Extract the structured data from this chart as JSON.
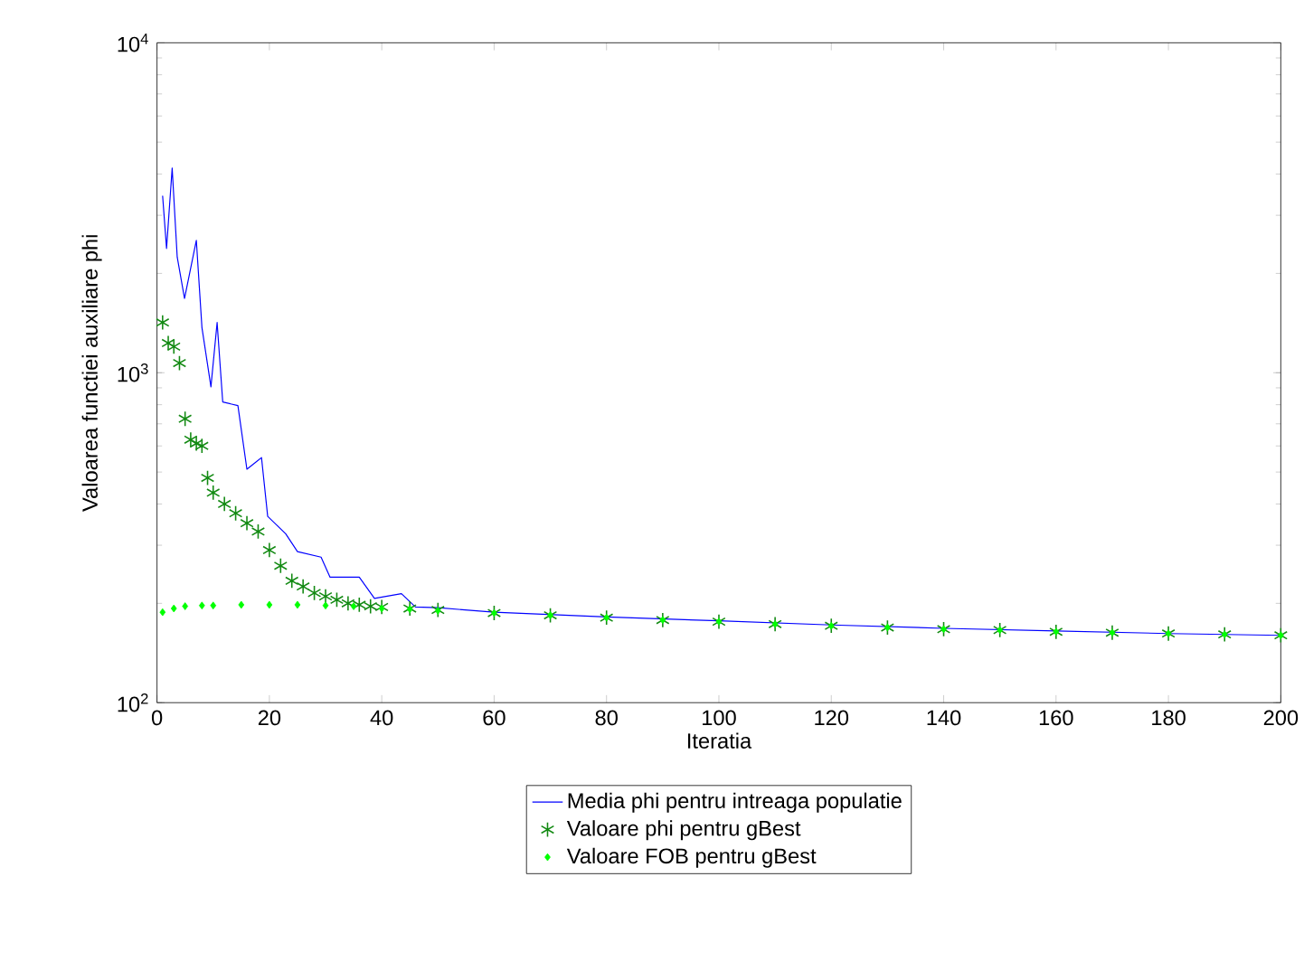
{
  "chart_data": {
    "type": "line",
    "xlabel": "Iteratia",
    "ylabel": "Valoarea functiei auxiliare phi",
    "log": "y",
    "xlim": [
      0,
      200
    ],
    "ylim": [
      100,
      10000
    ],
    "xticks": [
      0,
      20,
      40,
      60,
      80,
      100,
      120,
      140,
      160,
      180,
      200
    ],
    "yticks": [
      {
        "value": 100,
        "label": "10$^{2}$"
      },
      {
        "value": 1000,
        "label": "10$^{3}$"
      },
      {
        "value": 10000,
        "label": "10$^{4}$"
      }
    ],
    "legend": "bottom",
    "grid": false,
    "series": [
      {
        "name": "Media phi pentru intreaga populatie",
        "marker": "none",
        "line_style": "solid",
        "color": "#0000ff",
        "x": [
          1,
          1.7,
          2.7,
          3.6,
          4.9,
          7,
          8,
          9.6,
          10.7,
          11.7,
          14.4,
          16,
          18.6,
          19.7,
          22.9,
          25,
          29.2,
          30.8,
          36,
          38.7,
          43.5,
          46,
          50,
          60,
          80,
          100,
          120,
          140,
          160,
          180,
          200
        ],
        "values": [
          3440,
          2380,
          4170,
          2240,
          1680,
          2520,
          1370,
          906,
          1420,
          815,
          795,
          510,
          553,
          367,
          325,
          287,
          276,
          240,
          240,
          207,
          214,
          195,
          194,
          188,
          182,
          177,
          172,
          168,
          165,
          162,
          160
        ]
      },
      {
        "name": "Valoare phi pentru gBest",
        "type": "scatter",
        "marker": "cross",
        "color": "#138a13",
        "x": [
          1,
          2,
          3,
          4,
          5,
          6,
          7,
          8,
          9,
          10,
          12,
          14,
          16,
          18,
          20,
          22,
          24,
          26,
          28,
          30,
          32,
          34,
          36,
          38,
          40,
          45,
          50,
          60,
          70,
          80,
          90,
          100,
          110,
          120,
          130,
          140,
          150,
          160,
          170,
          180,
          190,
          200
        ],
        "values": [
          1420,
          1230,
          1200,
          1070,
          725,
          627,
          610,
          600,
          480,
          433,
          400,
          375,
          350,
          330,
          290,
          260,
          234,
          225,
          215,
          210,
          205,
          200,
          198,
          196,
          195,
          193,
          191,
          187,
          184,
          181,
          178,
          176,
          173,
          171,
          169,
          167,
          166,
          164,
          163,
          162,
          161,
          160
        ]
      },
      {
        "name": "Valoare FOB pentru gBest",
        "type": "scatter",
        "marker": "diamond",
        "color": "#00ff00",
        "x": [
          1,
          3,
          5,
          8,
          10,
          15,
          20,
          25,
          30,
          35,
          40,
          45,
          50,
          60,
          70,
          80,
          90,
          100,
          110,
          120,
          130,
          140,
          150,
          160,
          170,
          180,
          190,
          200
        ],
        "values": [
          188,
          193,
          196,
          197,
          197,
          198,
          198,
          198,
          197,
          196,
          193,
          192,
          190,
          187,
          184,
          181,
          178,
          176,
          173,
          171,
          169,
          167,
          166,
          164,
          163,
          162,
          161,
          160
        ]
      }
    ]
  }
}
